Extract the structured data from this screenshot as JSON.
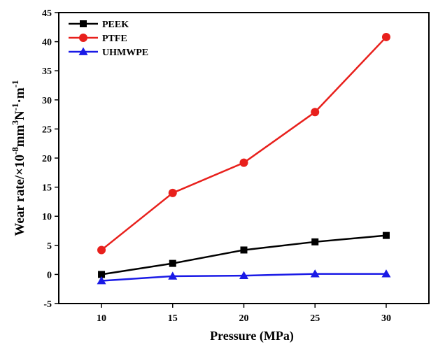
{
  "chart_data": {
    "type": "line",
    "x": [
      10,
      15,
      20,
      25,
      30
    ],
    "xlabel": "Pressure (MPa)",
    "ylabel_parts": [
      "Wear rate/×10",
      "-8",
      "mm",
      "3",
      "N",
      "-1",
      "·m",
      "-1"
    ],
    "xlim": [
      7,
      33
    ],
    "ylim": [
      -5,
      45
    ],
    "xticks": [
      10,
      15,
      20,
      25,
      30
    ],
    "yticks": [
      -5,
      0,
      5,
      10,
      15,
      20,
      25,
      30,
      35,
      40,
      45
    ],
    "grid": false,
    "legend_position": "top-left",
    "series": [
      {
        "name": "PEEK",
        "color": "#000000",
        "marker": "square",
        "values": [
          0.0,
          1.9,
          4.2,
          5.6,
          6.7
        ]
      },
      {
        "name": "PTFE",
        "color": "#e8201c",
        "marker": "circle",
        "values": [
          4.2,
          14.0,
          19.2,
          27.9,
          40.8
        ]
      },
      {
        "name": "UHMWPE",
        "color": "#1a1ae6",
        "marker": "triangle",
        "values": [
          -1.1,
          -0.3,
          -0.2,
          0.1,
          0.1
        ]
      }
    ]
  }
}
